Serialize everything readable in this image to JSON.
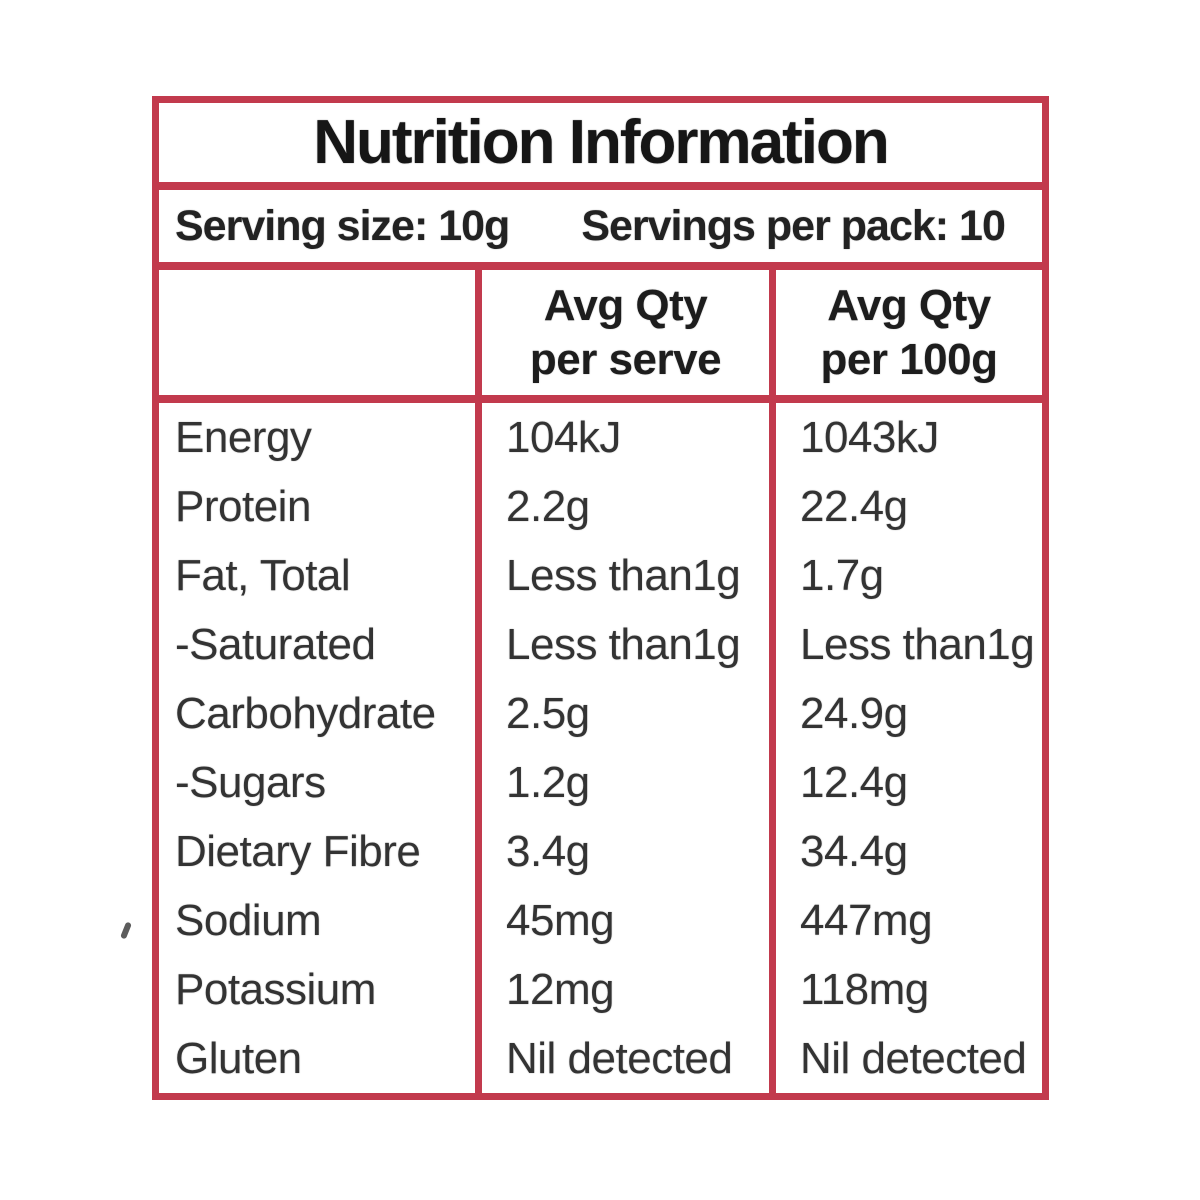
{
  "label": {
    "title": "Nutrition Information",
    "serving_size": "Serving size: 10g",
    "servings_per_pack": "Servings per pack: 10",
    "columns": {
      "nutrient": "",
      "per_serve_line1": "Avg Qty",
      "per_serve_line2": "per serve",
      "per_100g_line1": "Avg Qty",
      "per_100g_line2": "per 100g"
    },
    "rows": [
      {
        "label": "Energy",
        "per_serve": "104kJ",
        "per_100g": "1043kJ"
      },
      {
        "label": "Protein",
        "per_serve": "2.2g",
        "per_100g": "22.4g"
      },
      {
        "label": "Fat, Total",
        "per_serve": "Less than1g",
        "per_100g": "1.7g"
      },
      {
        "label": "-Saturated",
        "per_serve": "Less than1g",
        "per_100g": "Less than1g"
      },
      {
        "label": "Carbohydrate",
        "per_serve": "2.5g",
        "per_100g": "24.9g"
      },
      {
        "label": "-Sugars",
        "per_serve": "1.2g",
        "per_100g": "12.4g"
      },
      {
        "label": "Dietary Fibre",
        "per_serve": "3.4g",
        "per_100g": "34.4g"
      },
      {
        "label": "Sodium",
        "per_serve": "45mg",
        "per_100g": "447mg"
      },
      {
        "label": "Potassium",
        "per_serve": "12mg",
        "per_100g": "118mg"
      },
      {
        "label": "Gluten",
        "per_serve": "Nil detected",
        "per_100g": "Nil detected"
      }
    ],
    "colors": {
      "border_red": "#c23a4d",
      "text": "#2b2b2b",
      "background": "#ffffff"
    }
  }
}
